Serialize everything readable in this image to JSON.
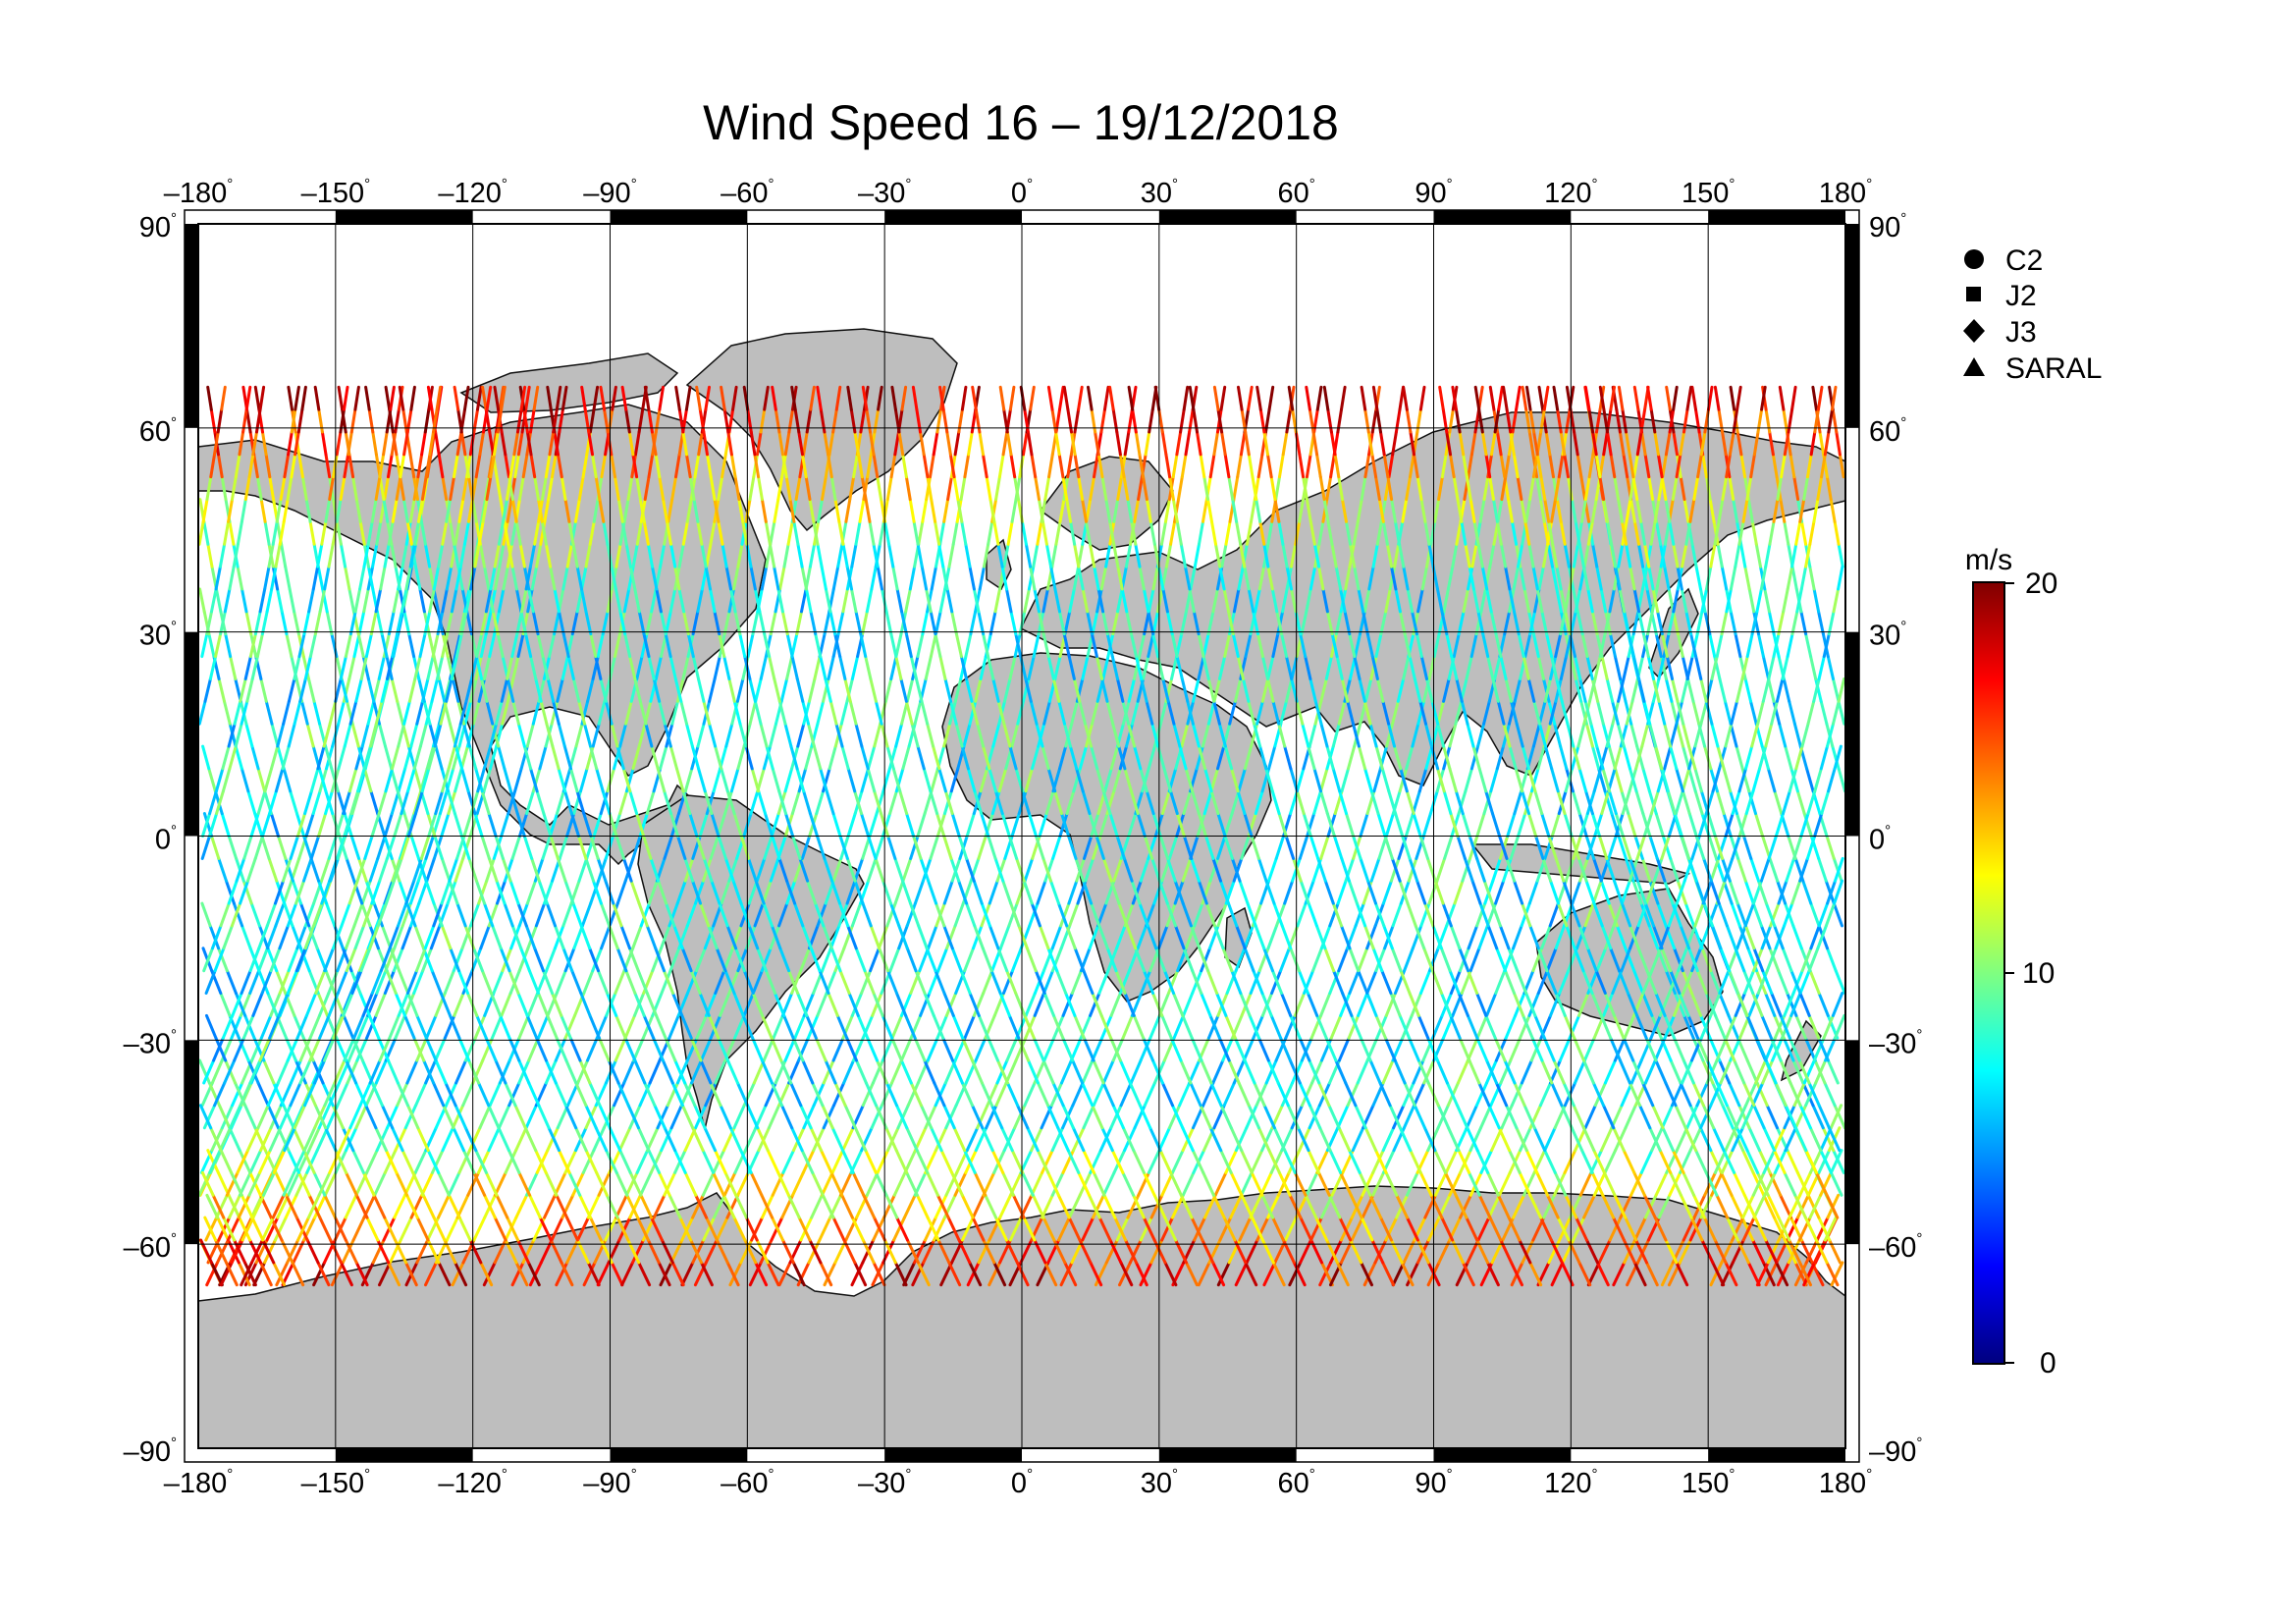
{
  "title": "Wind Speed 16 – 19/12/2018",
  "map": {
    "lon_range": [
      -180,
      180
    ],
    "lat_range": [
      -90,
      90
    ],
    "lon_ticks": [
      "–180",
      "–150",
      "–120",
      "–90",
      "–60",
      "–30",
      "0",
      "30",
      "60",
      "90",
      "120",
      "150",
      "180"
    ],
    "lat_ticks": [
      "90",
      "60",
      "30",
      "0",
      "–30",
      "–60",
      "–90"
    ],
    "degree_mark": "°",
    "grid": true,
    "land_color": "#bebebe",
    "ocean_color": "#ffffff",
    "frame_color": "#000000"
  },
  "legend": {
    "placement": "top-right",
    "items": [
      {
        "symbol": "circle",
        "label": "C2"
      },
      {
        "symbol": "square",
        "label": "J2"
      },
      {
        "symbol": "diamond",
        "label": "J3"
      },
      {
        "symbol": "triangle",
        "label": "SARAL"
      }
    ]
  },
  "colorbar": {
    "unit": "m/s",
    "min": 0,
    "max": 20,
    "tick_labels": [
      "20",
      "10",
      "0"
    ],
    "colors": [
      "#00007f",
      "#0000ff",
      "#0080ff",
      "#00ffff",
      "#80ff80",
      "#ffff00",
      "#ff8000",
      "#ff0000",
      "#7f0000"
    ]
  }
}
